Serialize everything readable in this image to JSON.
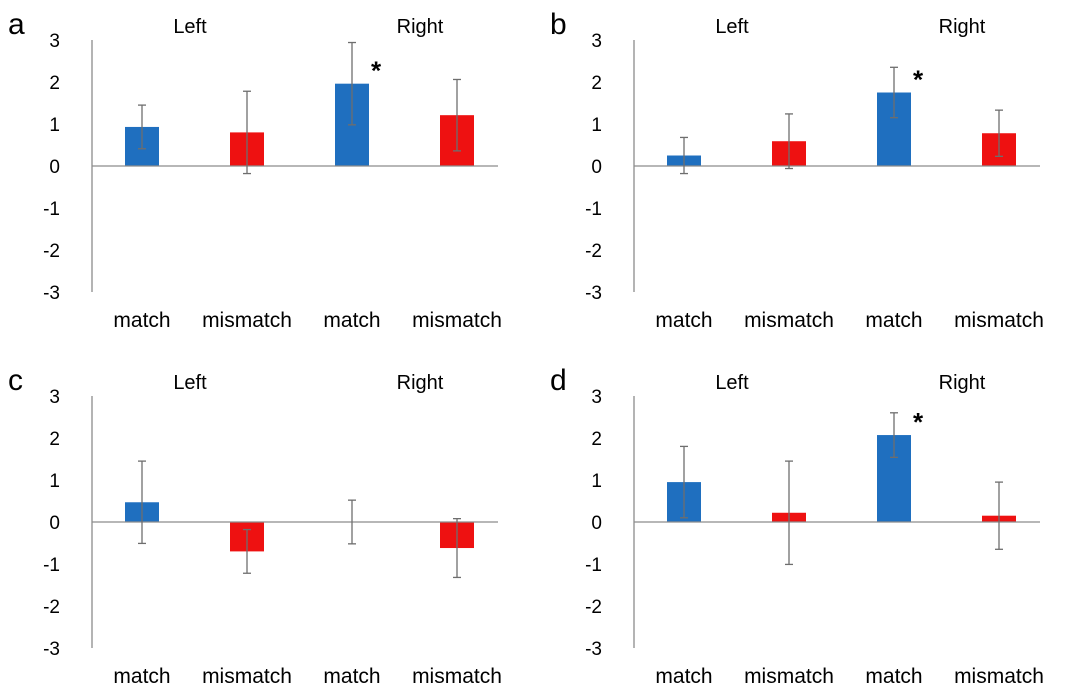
{
  "chart_data": [
    {
      "panel": "a",
      "type": "bar",
      "group_labels": [
        "Left",
        "Right"
      ],
      "categories": [
        "match",
        "mismatch",
        "match",
        "mismatch"
      ],
      "values": [
        0.93,
        0.8,
        1.96,
        1.21
      ],
      "errors": [
        0.52,
        0.98,
        0.98,
        0.85
      ],
      "colors": [
        "#1f6fbf",
        "#ee1111",
        "#1f6fbf",
        "#ee1111"
      ],
      "significance": [
        "",
        "",
        "*",
        ""
      ],
      "yticks": [
        "3",
        "2",
        "1",
        "0",
        "-1",
        "-2",
        "-3"
      ],
      "ylim": [
        -3,
        3
      ],
      "grid": false
    },
    {
      "panel": "b",
      "type": "bar",
      "group_labels": [
        "Left",
        "Right"
      ],
      "categories": [
        "match",
        "mismatch",
        "match",
        "mismatch"
      ],
      "values": [
        0.25,
        0.59,
        1.75,
        0.78
      ],
      "errors": [
        0.43,
        0.65,
        0.6,
        0.55
      ],
      "colors": [
        "#1f6fbf",
        "#ee1111",
        "#1f6fbf",
        "#ee1111"
      ],
      "significance": [
        "",
        "",
        "*",
        ""
      ],
      "yticks": [
        "3",
        "2",
        "1",
        "0",
        "-1",
        "-2",
        "-3"
      ],
      "ylim": [
        -3,
        3
      ],
      "grid": false
    },
    {
      "panel": "c",
      "type": "bar",
      "group_labels": [
        "Left",
        "Right"
      ],
      "categories": [
        "match",
        "mismatch",
        "match",
        "mismatch"
      ],
      "values": [
        0.47,
        -0.7,
        0.0,
        -0.62
      ],
      "errors": [
        0.98,
        0.52,
        0.52,
        0.7
      ],
      "colors": [
        "#1f6fbf",
        "#ee1111",
        "#1f6fbf",
        "#ee1111"
      ],
      "significance": [
        "",
        "",
        "",
        ""
      ],
      "yticks": [
        "3",
        "2",
        "1",
        "0",
        "-1",
        "-2",
        "-3"
      ],
      "ylim": [
        -3,
        3
      ],
      "grid": false
    },
    {
      "panel": "d",
      "type": "bar",
      "group_labels": [
        "Left",
        "Right"
      ],
      "categories": [
        "match",
        "mismatch",
        "match",
        "mismatch"
      ],
      "values": [
        0.95,
        0.22,
        2.07,
        0.15
      ],
      "errors": [
        0.85,
        1.23,
        0.53,
        0.8
      ],
      "colors": [
        "#1f6fbf",
        "#ee1111",
        "#1f6fbf",
        "#ee1111"
      ],
      "significance": [
        "",
        "",
        "*",
        ""
      ],
      "yticks": [
        "3",
        "2",
        "1",
        "0",
        "-1",
        "-2",
        "-3"
      ],
      "ylim": [
        -3,
        3
      ],
      "grid": false
    }
  ]
}
